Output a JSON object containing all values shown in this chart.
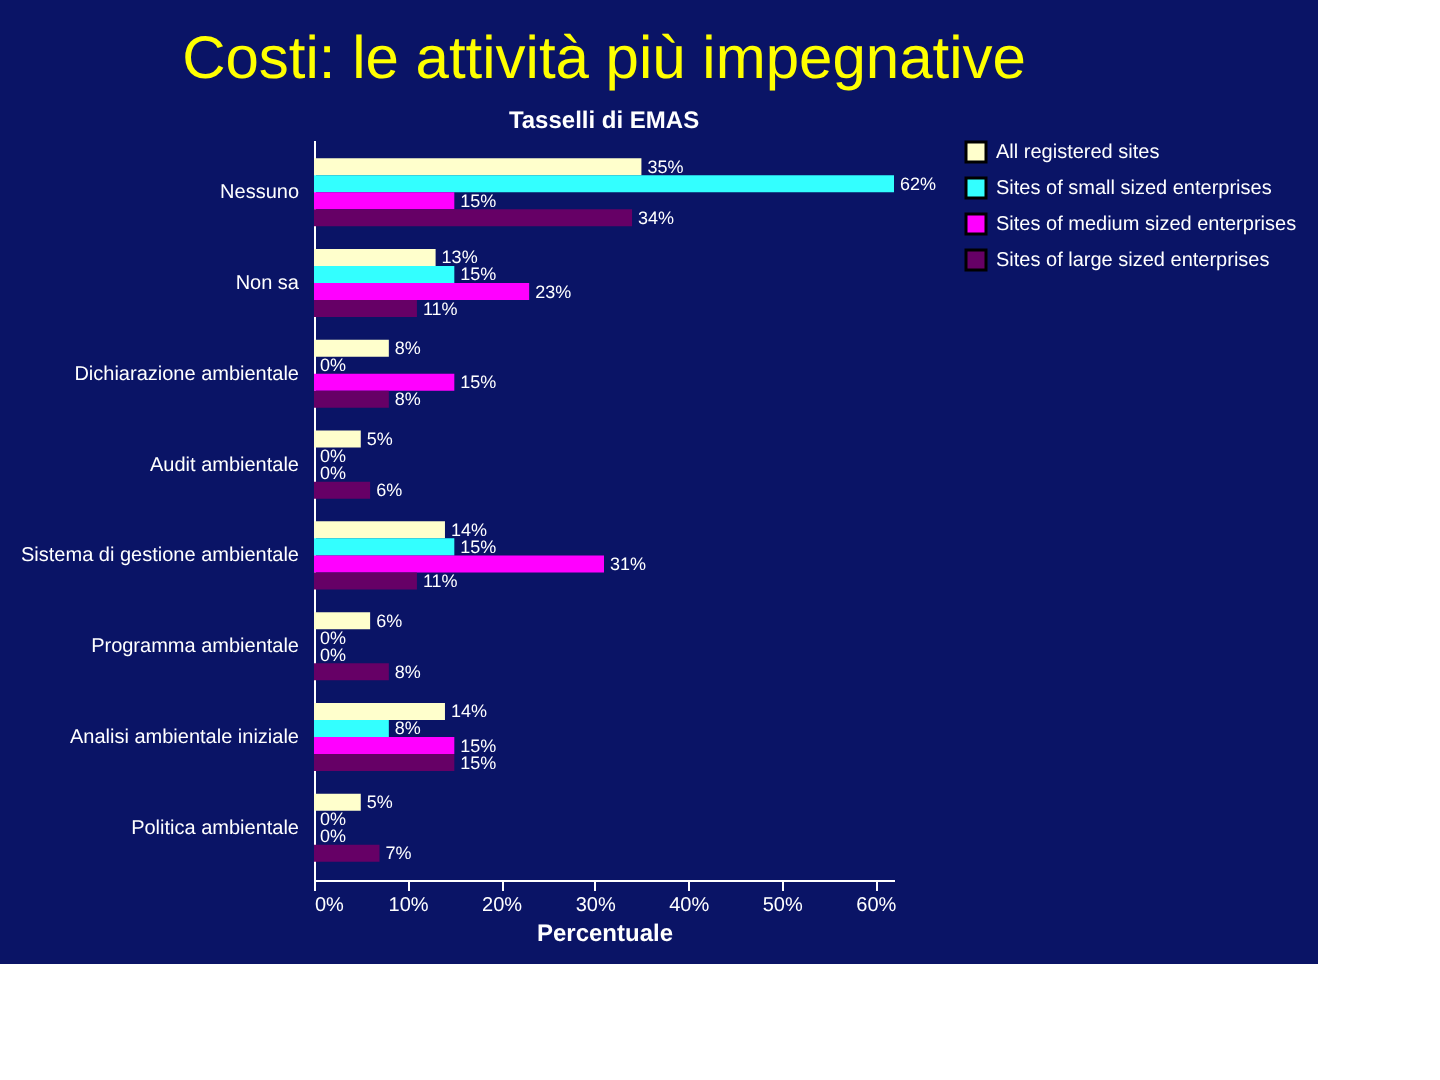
{
  "chart_data": {
    "type": "bar",
    "orientation": "horizontal",
    "title": "Costi: le attività più impegnative",
    "subtitle": "Tasselli di EMAS",
    "xlabel": "Percentuale",
    "categories": [
      "Nessuno",
      "Non sa",
      "Dichiarazione ambientale",
      "Audit ambientale",
      "Sistema di gestione ambientale",
      "Programma ambientale",
      "Analisi ambientale iniziale",
      "Politica ambientale"
    ],
    "series": [
      {
        "name": "All registered sites",
        "color": "#ffffcc",
        "values": [
          35,
          13,
          8,
          5,
          14,
          6,
          14,
          5
        ],
        "value_labels": [
          "35%",
          "13%",
          "8%",
          "5%",
          "14%",
          "6%",
          "14%",
          "5%"
        ]
      },
      {
        "name": "Sites of small sized enterprises",
        "color": "#33ffff",
        "values": [
          62,
          15,
          0,
          0,
          15,
          0,
          8,
          0
        ],
        "value_labels": [
          "62%",
          "15%",
          "0%",
          "0%",
          "15%",
          "0%",
          "8%",
          "0%"
        ]
      },
      {
        "name": "Sites of medium sized enterprises",
        "color": "#ff00ff",
        "values": [
          15,
          23,
          15,
          0,
          31,
          0,
          15,
          0
        ],
        "value_labels": [
          "15%",
          "23%",
          "15%",
          "0%",
          "31%",
          "0%",
          "15%",
          "0%"
        ]
      },
      {
        "name": "Sites of large sized enterprises",
        "color": "#660066",
        "values": [
          34,
          11,
          8,
          6,
          11,
          8,
          15,
          7
        ],
        "value_labels": [
          "34%",
          "11%",
          "8%",
          "6%",
          "11%",
          "8%",
          "15%",
          "7%"
        ]
      }
    ],
    "xlim": [
      0,
      62
    ],
    "xticks": [
      {
        "value": 0,
        "label": "0%"
      },
      {
        "value": 10,
        "label": "10%"
      },
      {
        "value": 20,
        "label": "20%"
      },
      {
        "value": 30,
        "label": "30%"
      },
      {
        "value": 40,
        "label": "40%"
      },
      {
        "value": 50,
        "label": "50%"
      },
      {
        "value": 60,
        "label": "60%"
      }
    ],
    "grid": false,
    "legend": "right"
  }
}
